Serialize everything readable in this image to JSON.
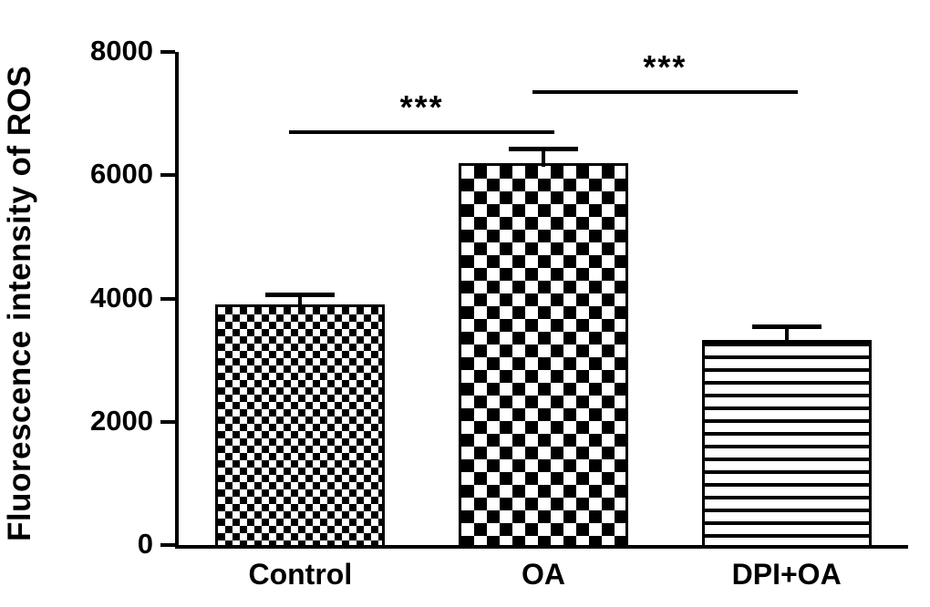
{
  "figure": {
    "background": "#ffffff",
    "ink_color": "#000000"
  },
  "chart_data": {
    "type": "bar",
    "title": "",
    "xlabel": "",
    "ylabel": "Fluorescence intensity of ROS",
    "categories": [
      "Control",
      "OA",
      "DPI+OA"
    ],
    "values": [
      3900,
      6200,
      3320
    ],
    "errors": [
      160,
      230,
      230
    ],
    "error_type": "upper",
    "ylim": [
      0,
      8000
    ],
    "yticks": [
      0,
      2000,
      4000,
      6000,
      8000
    ],
    "grid": false,
    "legend": null,
    "bar_patterns": [
      "fine-checkerboard",
      "coarse-checkerboard",
      "horizontal-stripes"
    ],
    "significance": [
      {
        "from": 0,
        "to": 1,
        "label": "***",
        "y": 6700
      },
      {
        "from": 1,
        "to": 2,
        "label": "***",
        "y": 7350
      }
    ]
  }
}
